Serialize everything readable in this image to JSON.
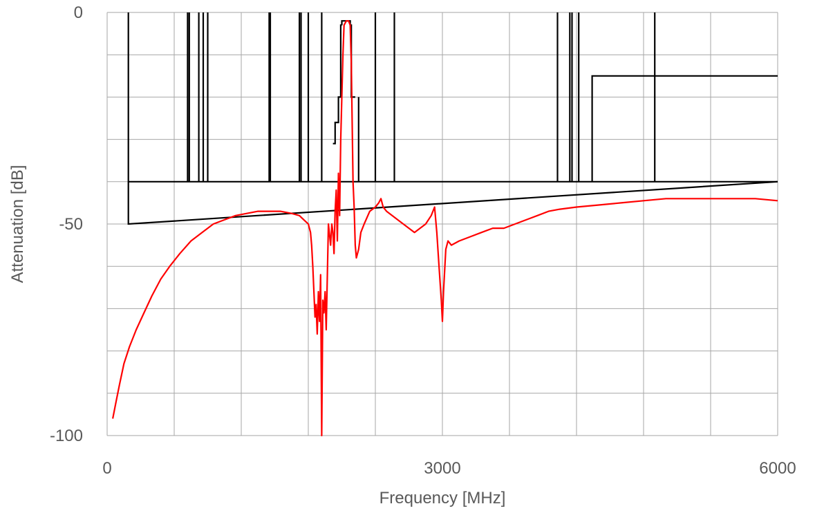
{
  "chart_data": {
    "type": "line",
    "xlabel": "Frequency [MHz]",
    "ylabel": "Attenuation  [dB]",
    "xlim": [
      0,
      6000
    ],
    "ylim": [
      -100,
      0
    ],
    "x_ticks": [
      0,
      3000,
      6000
    ],
    "x_tick_labels": [
      "0",
      "3000",
      "6000"
    ],
    "y_ticks": [
      0,
      -50,
      -100
    ],
    "y_tick_labels": [
      "0",
      "-50",
      "-100"
    ],
    "x_grid_step": 600,
    "y_grid_step": 10,
    "grid": true,
    "legend": "none",
    "colors": {
      "spec_mask": "#000000",
      "measured": "#ff0000",
      "grid": "#a6a6a6",
      "text": "#595959"
    },
    "series": [
      {
        "role": "specification mask (black)",
        "segments": [
          {
            "x": [
              190,
              190,
              6000
            ],
            "y": [
              0,
              -50,
              -40
            ]
          },
          {
            "x": [
              190,
              6000
            ],
            "y": [
              -40,
              -40
            ]
          },
          {
            "x": [
              720,
              720
            ],
            "y": [
              0,
              -40
            ]
          },
          {
            "x": [
              735,
              735
            ],
            "y": [
              0,
              -40
            ]
          },
          {
            "x": [
              820,
              820
            ],
            "y": [
              0,
              -40
            ]
          },
          {
            "x": [
              860,
              860
            ],
            "y": [
              0,
              -40
            ]
          },
          {
            "x": [
              900,
              900
            ],
            "y": [
              0,
              -40
            ]
          },
          {
            "x": [
              1450,
              1450
            ],
            "y": [
              0,
              -40
            ]
          },
          {
            "x": [
              1460,
              1460
            ],
            "y": [
              0,
              -40
            ]
          },
          {
            "x": [
              1720,
              1720
            ],
            "y": [
              0,
              -40
            ]
          },
          {
            "x": [
              1735,
              1735
            ],
            "y": [
              0,
              -40
            ]
          },
          {
            "x": [
              1800,
              1800
            ],
            "y": [
              0,
              -40
            ]
          },
          {
            "x": [
              1920,
              1920
            ],
            "y": [
              0,
              -40
            ]
          },
          {
            "x": [
              2020,
              2040,
              2040,
              2070,
              2070,
              2090,
              2090,
              2100
            ],
            "y": [
              -31,
              -31,
              -26,
              -26,
              -20,
              -20,
              -3,
              -3
            ]
          },
          {
            "x": [
              2100,
              2100,
              2175,
              2175,
              2185,
              2185,
              2220
            ],
            "y": [
              -3,
              -2,
              -2,
              -3,
              -3,
              -20,
              -20
            ]
          },
          {
            "x": [
              2250,
              2250
            ],
            "y": [
              -20,
              -40
            ]
          },
          {
            "x": [
              2400,
              2400
            ],
            "y": [
              0,
              -40
            ]
          },
          {
            "x": [
              2570,
              2570
            ],
            "y": [
              0,
              -40
            ]
          },
          {
            "x": [
              4030,
              4030
            ],
            "y": [
              0,
              -40
            ]
          },
          {
            "x": [
              4140,
              4140
            ],
            "y": [
              0,
              -40
            ]
          },
          {
            "x": [
              4160,
              4160
            ],
            "y": [
              0,
              -40
            ]
          },
          {
            "x": [
              4220,
              4220
            ],
            "y": [
              0,
              -40
            ]
          },
          {
            "x": [
              4340,
              4340,
              6000
            ],
            "y": [
              -40,
              -15,
              -15
            ]
          },
          {
            "x": [
              4900,
              4900
            ],
            "y": [
              0,
              -40
            ]
          }
        ]
      },
      {
        "role": "measured attenuation (red)",
        "x": [
          50,
          80,
          110,
          150,
          200,
          260,
          330,
          400,
          480,
          560,
          650,
          750,
          850,
          950,
          1050,
          1150,
          1250,
          1350,
          1450,
          1550,
          1650,
          1720,
          1760,
          1800,
          1820,
          1830,
          1840,
          1850,
          1860,
          1870,
          1880,
          1890,
          1900,
          1910,
          1920,
          1930,
          1940,
          1950,
          1960,
          1980,
          2000,
          2010,
          2020,
          2030,
          2040,
          2050,
          2060,
          2070,
          2080,
          2090,
          2100,
          2110,
          2120,
          2140,
          2160,
          2175,
          2185,
          2200,
          2210,
          2220,
          2230,
          2250,
          2270,
          2300,
          2350,
          2400,
          2430,
          2450,
          2470,
          2500,
          2550,
          2600,
          2650,
          2700,
          2750,
          2800,
          2850,
          2900,
          2930,
          2950,
          2970,
          2990,
          3000,
          3010,
          3030,
          3050,
          3080,
          3150,
          3250,
          3350,
          3450,
          3550,
          3650,
          3750,
          3850,
          3950,
          4050,
          4200,
          4400,
          4600,
          4800,
          5000,
          5200,
          5400,
          5600,
          5800,
          6000
        ],
        "y": [
          -96,
          -92,
          -88,
          -83,
          -79,
          -75,
          -71,
          -67,
          -63,
          -60,
          -57,
          -54,
          -52,
          -50,
          -49,
          -48,
          -47.5,
          -47,
          -47,
          -47,
          -47.5,
          -48,
          -49,
          -50,
          -52,
          -55,
          -60,
          -66,
          -72,
          -69,
          -76,
          -66,
          -73,
          -62,
          -100,
          -68,
          -71,
          -66,
          -75,
          -50,
          -55,
          -50,
          -52,
          -57,
          -47,
          -42,
          -54,
          -38,
          -48,
          -30,
          -20,
          -10,
          -3,
          -2,
          -2,
          -3,
          -12,
          -40,
          -46,
          -55,
          -58,
          -56,
          -52,
          -50,
          -47,
          -46,
          -45,
          -44,
          -46,
          -47,
          -48,
          -49,
          -50,
          -51,
          -52,
          -51,
          -50,
          -48,
          -46,
          -52,
          -60,
          -68,
          -73,
          -66,
          -56,
          -54,
          -55,
          -54,
          -53,
          -52,
          -51,
          -51,
          -50,
          -49,
          -48,
          -47,
          -46.5,
          -46,
          -45.5,
          -45,
          -44.5,
          -44,
          -44,
          -44,
          -44,
          -44,
          -44.5
        ]
      }
    ]
  }
}
